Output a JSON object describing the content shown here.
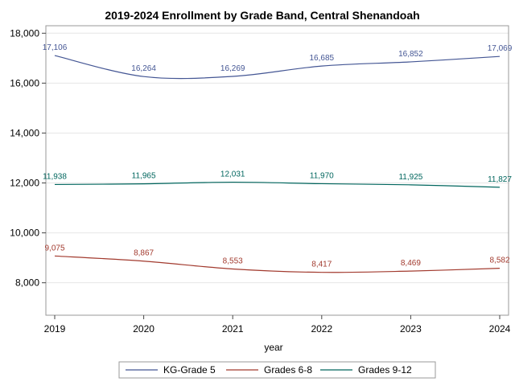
{
  "chart_data": {
    "type": "line",
    "title": "2019-2024 Enrollment by Grade Band, Central Shenandoah",
    "xlabel": "year",
    "ylabel": "",
    "x": [
      2019,
      2020,
      2021,
      2022,
      2023,
      2024
    ],
    "x_tick_labels": [
      "2019",
      "2020",
      "2021",
      "2022",
      "2023",
      "2024"
    ],
    "ylim": [
      6700,
      18300
    ],
    "y_ticks": [
      8000,
      10000,
      12000,
      14000,
      16000,
      18000
    ],
    "y_tick_labels": [
      "8,000",
      "10,000",
      "12,000",
      "14,000",
      "16,000",
      "18,000"
    ],
    "grid": "horizontal",
    "legend_position": "bottom",
    "series": [
      {
        "name": "KG-Grade 5",
        "color": "#445694",
        "values": [
          17106,
          16264,
          16269,
          16685,
          16852,
          17069
        ],
        "labels": [
          "17,106",
          "16,264",
          "16,269",
          "16,685",
          "16,852",
          "17,069"
        ]
      },
      {
        "name": "Grades 6-8",
        "color": "#a23a2e",
        "values": [
          9075,
          8867,
          8553,
          8417,
          8469,
          8582
        ],
        "labels": [
          "9,075",
          "8,867",
          "8,553",
          "8,417",
          "8,469",
          "8,582"
        ]
      },
      {
        "name": "Grades 9-12",
        "color": "#01665e",
        "values": [
          11938,
          11965,
          12031,
          11970,
          11925,
          11827
        ],
        "labels": [
          "11,938",
          "11,965",
          "12,031",
          "11,970",
          "11,925",
          "11,827"
        ]
      }
    ]
  }
}
